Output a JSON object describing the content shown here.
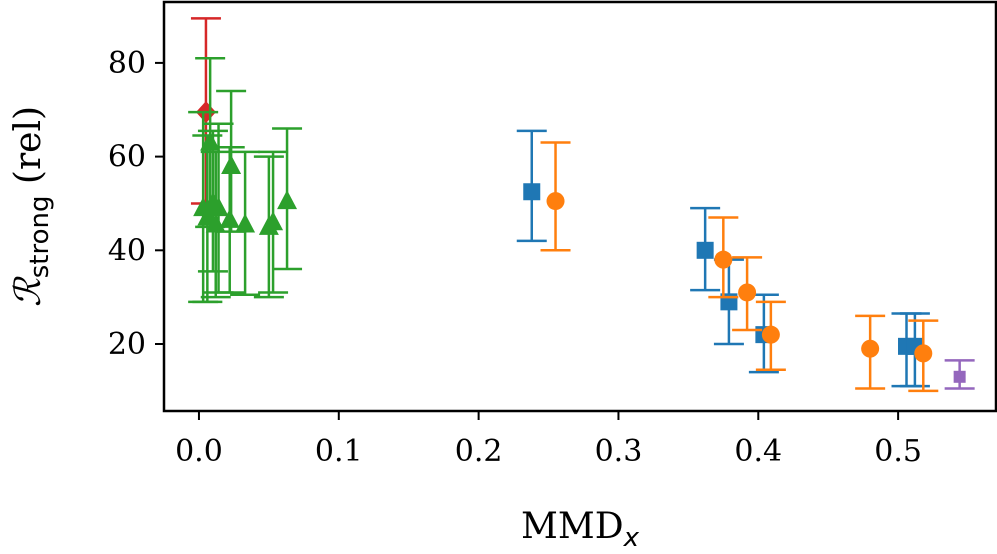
{
  "chart_data": {
    "type": "scatter",
    "title": "",
    "xlabel_base": "MMD",
    "xlabel_sub": "x",
    "ylabel_base": "ℛ",
    "ylabel_sub": "strong",
    "ylabel_suffix": " (rel)",
    "xlim": [
      -0.025,
      0.57
    ],
    "ylim": [
      5.7,
      93
    ],
    "xticks": [
      0.0,
      0.1,
      0.2,
      0.3,
      0.4,
      0.5
    ],
    "xtick_labels": [
      "0.0",
      "0.1",
      "0.2",
      "0.3",
      "0.4",
      "0.5"
    ],
    "yticks": [
      20,
      40,
      60,
      80
    ],
    "ytick_labels": [
      "20",
      "40",
      "60",
      "80"
    ],
    "series": [
      {
        "name": "red",
        "color": "#d62728",
        "marker": "diamond",
        "points": [
          {
            "x": 0.005,
            "y": 69.5,
            "lo": 50.0,
            "hi": 89.5
          }
        ]
      },
      {
        "name": "green",
        "color": "#2ca02c",
        "marker": "triangle",
        "points": [
          {
            "x": 0.003,
            "y": 49.0,
            "lo": 29.0,
            "hi": 69.5
          },
          {
            "x": 0.006,
            "y": 47.0,
            "lo": 29.0,
            "hi": 64.5
          },
          {
            "x": 0.008,
            "y": 63.0,
            "lo": 45.0,
            "hi": 81.0
          },
          {
            "x": 0.01,
            "y": 50.0,
            "lo": 35.5,
            "hi": 65.5
          },
          {
            "x": 0.012,
            "y": 45.5,
            "lo": 30.0,
            "hi": 61.0
          },
          {
            "x": 0.014,
            "y": 49.0,
            "lo": 31.0,
            "hi": 67.0
          },
          {
            "x": 0.022,
            "y": 46.5,
            "lo": 31.0,
            "hi": 62.0
          },
          {
            "x": 0.023,
            "y": 58.0,
            "lo": 44.0,
            "hi": 74.0
          },
          {
            "x": 0.033,
            "y": 45.5,
            "lo": 30.5,
            "hi": 61.0
          },
          {
            "x": 0.05,
            "y": 45.0,
            "lo": 30.0,
            "hi": 60.0
          },
          {
            "x": 0.053,
            "y": 46.0,
            "lo": 31.0,
            "hi": 61.0
          },
          {
            "x": 0.063,
            "y": 50.5,
            "lo": 36.0,
            "hi": 66.0
          }
        ]
      },
      {
        "name": "blue",
        "color": "#1f77b4",
        "marker": "square",
        "points": [
          {
            "x": 0.238,
            "y": 52.5,
            "lo": 42.0,
            "hi": 65.5
          },
          {
            "x": 0.362,
            "y": 40.0,
            "lo": 31.5,
            "hi": 49.0
          },
          {
            "x": 0.379,
            "y": 29.0,
            "lo": 20.0,
            "hi": 38.0
          },
          {
            "x": 0.404,
            "y": 22.0,
            "lo": 14.0,
            "hi": 30.5
          },
          {
            "x": 0.506,
            "y": 19.5,
            "lo": 11.0,
            "hi": 26.5
          },
          {
            "x": 0.512,
            "y": 19.5,
            "lo": 11.0,
            "hi": 26.5
          }
        ]
      },
      {
        "name": "orange",
        "color": "#ff7f0e",
        "marker": "circle",
        "points": [
          {
            "x": 0.255,
            "y": 50.5,
            "lo": 40.0,
            "hi": 63.0
          },
          {
            "x": 0.375,
            "y": 38.0,
            "lo": 30.0,
            "hi": 47.0
          },
          {
            "x": 0.392,
            "y": 31.0,
            "lo": 23.0,
            "hi": 38.5
          },
          {
            "x": 0.409,
            "y": 22.0,
            "lo": 14.5,
            "hi": 29.0
          },
          {
            "x": 0.48,
            "y": 19.0,
            "lo": 10.5,
            "hi": 26.0
          },
          {
            "x": 0.518,
            "y": 18.0,
            "lo": 10.0,
            "hi": 25.0
          }
        ]
      },
      {
        "name": "purple",
        "color": "#9467bd",
        "marker": "square",
        "points": [
          {
            "x": 0.544,
            "y": 13.0,
            "lo": 10.5,
            "hi": 16.5
          }
        ]
      }
    ]
  }
}
